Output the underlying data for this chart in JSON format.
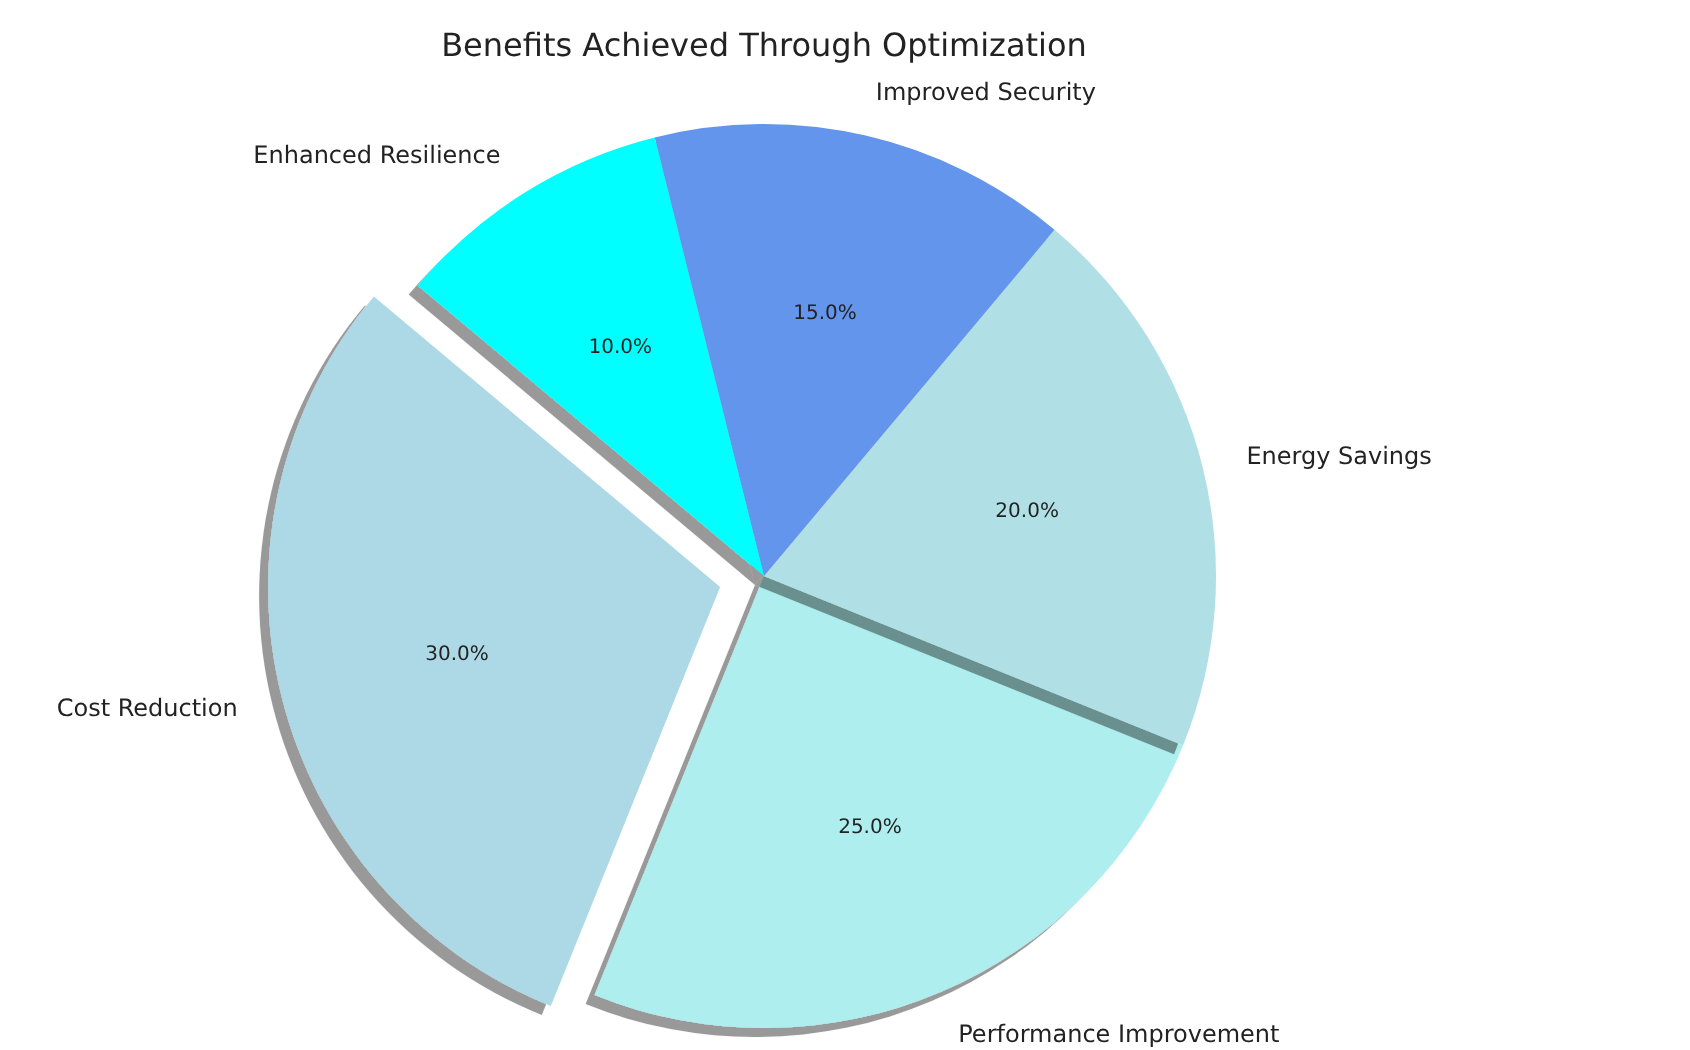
{
  "chart_data": {
    "type": "pie",
    "title": "Benefits Achieved Through Optimization",
    "categories": [
      "Cost Reduction",
      "Performance Improvement",
      "Energy Savings",
      "Improved Security",
      "Enhanced Resilience"
    ],
    "values": [
      30,
      25,
      20,
      15,
      10
    ],
    "colors": [
      "#add8e6",
      "#afeeee",
      "#b0e0e6",
      "#6495ed",
      "#00ffff"
    ],
    "value_labels": [
      "30.0%",
      "25.0%",
      "20.0%",
      "15.0%",
      "10.0%"
    ]
  }
}
